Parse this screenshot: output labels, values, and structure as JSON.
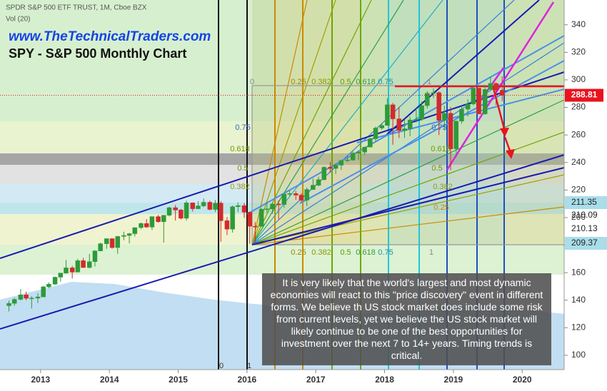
{
  "chart_data": {
    "type": "candlestick",
    "header": "SPDR S&P 500 ETF TRUST, 1M, Cboe BZX",
    "volume_label": "Vol (20)",
    "subtitle": "www.TheTechnicalTraders.com",
    "title": "SPY - S&P 500 Monthly Chart",
    "note": "It is very likely that the world's largest and most dynamic economies will react to this \"price discovery\" event in different forms.  We believe th US stock market does include some risk from current levels, yet we believe the US stock market will likely continue to be one of the best opportunities for investment over the next 7 to 14+ years.  Timing trends is critical.",
    "up_color": "#2e9a3a",
    "down_color": "#d42a2a",
    "xlim": [
      2012.41,
      2020.61
    ],
    "ylim": [
      89.6,
      358
    ],
    "xticks": [
      2013,
      2014,
      2015,
      2016,
      2017,
      2018,
      2019,
      2020
    ],
    "yticks": [
      100,
      120,
      140,
      160,
      180,
      200,
      220,
      240,
      260,
      280,
      300,
      320,
      340
    ],
    "last_price": 288.81,
    "last_price_color": "#e8141e",
    "fib_price_labels": [
      211.35,
      210.09,
      210.13,
      209.37
    ],
    "fib_labels": [
      "0",
      "0.25",
      "0.382",
      "0.5",
      "0.618",
      "0.75",
      "1",
      "0.25",
      "0.382",
      "0.5",
      "0.618",
      "0.75",
      "1",
      "0.75",
      "0.618",
      "0.5",
      "0.382",
      "0.75",
      "0.618",
      "0.5",
      "0.382",
      "0.25",
      "0",
      "1"
    ],
    "x": [
      2012.54,
      2012.62,
      2012.71,
      2012.79,
      2012.87,
      2012.96,
      2013.04,
      2013.12,
      2013.21,
      2013.29,
      2013.37,
      2013.46,
      2013.54,
      2013.62,
      2013.71,
      2013.79,
      2013.87,
      2013.96,
      2014.04,
      2014.12,
      2014.21,
      2014.29,
      2014.37,
      2014.46,
      2014.54,
      2014.62,
      2014.71,
      2014.79,
      2014.87,
      2014.96,
      2015.04,
      2015.12,
      2015.21,
      2015.29,
      2015.37,
      2015.46,
      2015.54,
      2015.62,
      2015.71,
      2015.79,
      2015.87,
      2015.96,
      2016.04,
      2016.12,
      2016.21,
      2016.29,
      2016.37,
      2016.46,
      2016.54,
      2016.62,
      2016.71,
      2016.79,
      2016.87,
      2016.96,
      2017.04,
      2017.12,
      2017.21,
      2017.29,
      2017.37,
      2017.46,
      2017.54,
      2017.62,
      2017.71,
      2017.79,
      2017.87,
      2017.96,
      2018.04,
      2018.12,
      2018.21,
      2018.29,
      2018.37,
      2018.46,
      2018.54,
      2018.62,
      2018.71,
      2018.79,
      2018.87,
      2018.96,
      2019.04,
      2019.12,
      2019.21,
      2019.29,
      2019.37,
      2019.46,
      2019.54,
      2019.62,
      2019.71
    ],
    "open": [
      136.0,
      137.7,
      140.6,
      143.9,
      141.4,
      141.5,
      142.4,
      149.7,
      151.6,
      156.7,
      159.7,
      163.5,
      160.4,
      168.7,
      163.7,
      168.0,
      175.8,
      181.0,
      184.7,
      178.2,
      186.3,
      187.0,
      188.3,
      192.7,
      195.7,
      193.1,
      200.7,
      197.0,
      201.7,
      207.2,
      205.5,
      199.5,
      210.7,
      206.4,
      208.5,
      211.1,
      205.9,
      210.5,
      197.7,
      191.6,
      207.9,
      208.7,
      203.9,
      193.7,
      193.6,
      206.0,
      206.3,
      209.8,
      209.5,
      217.1,
      217.4,
      216.3,
      212.6,
      220.4,
      223.5,
      227.5,
      236.5,
      235.7,
      238.1,
      241.4,
      241.8,
      246.8,
      247.5,
      251.2,
      257.2,
      265.0,
      266.9,
      281.9,
      271.7,
      263.2,
      264.5,
      270.9,
      271.3,
      281.3,
      290.3,
      290.7,
      270.6,
      275.7,
      249.9,
      270.0,
      278.7,
      282.5,
      294.0,
      275.3,
      293.0,
      297.4,
      292.5
    ],
    "high": [
      139.6,
      141.8,
      148.1,
      146.2,
      142.9,
      145.1,
      150.3,
      152.9,
      157.2,
      159.7,
      169.1,
      165.0,
      170.0,
      170.7,
      173.6,
      176.3,
      181.8,
      184.7,
      184.1,
      186.7,
      189.7,
      188.9,
      192.8,
      196.5,
      198.9,
      200.8,
      201.9,
      201.8,
      207.9,
      209.1,
      206.3,
      212.2,
      211.0,
      211.9,
      213.8,
      212.3,
      212.7,
      211.9,
      200.3,
      208.7,
      211.0,
      210.6,
      201.9,
      196.7,
      206.9,
      210.9,
      210.7,
      212.5,
      217.5,
      219.6,
      219.2,
      217.7,
      221.8,
      228.3,
      229.7,
      237.3,
      240.3,
      239.4,
      242.1,
      245.0,
      248.0,
      248.9,
      251.3,
      258.0,
      266.1,
      268.6,
      286.6,
      283.3,
      280.4,
      271.3,
      273.3,
      279.5,
      284.4,
      291.7,
      293.9,
      291.7,
      281.2,
      280.4,
      270.5,
      281.2,
      286.0,
      294.5,
      294.0,
      296.3,
      302.2,
      298.0,
      302.6
    ],
    "low": [
      131.9,
      136.0,
      139.8,
      140.0,
      134.0,
      138.0,
      144.7,
      148.7,
      151.2,
      153.5,
      159.3,
      155.7,
      160.6,
      163.6,
      163.2,
      164.5,
      175.5,
      177.3,
      177.4,
      173.7,
      183.5,
      181.3,
      186.3,
      191.6,
      192.6,
      191.0,
      196.3,
      181.9,
      200.8,
      197.9,
      198.6,
      197.9,
      204.4,
      206.1,
      207.5,
      205.2,
      204.1,
      182.4,
      187.3,
      189.1,
      204.1,
      199.8,
      181.0,
      181.1,
      193.5,
      203.5,
      202.8,
      198.7,
      207.1,
      215.7,
      212.8,
      211.3,
      208.4,
      220.2,
      222.7,
      227.1,
      232.5,
      231.6,
      234.6,
      240.5,
      241.2,
      241.8,
      245.4,
      252.2,
      255.0,
      263.6,
      267.4,
      252.9,
      257.8,
      257.8,
      259.1,
      269.0,
      270.3,
      279.2,
      286.8,
      259.9,
      263.4,
      234.3,
      243.7,
      268.2,
      273.4,
      281.6,
      275.0,
      274.6,
      293.0,
      281.7,
      284.6
    ],
    "close": [
      137.7,
      140.6,
      143.9,
      141.4,
      141.5,
      142.4,
      149.7,
      151.6,
      156.7,
      159.7,
      163.5,
      160.4,
      168.7,
      163.7,
      168.0,
      175.8,
      181.0,
      184.7,
      178.2,
      186.3,
      187.0,
      188.3,
      192.7,
      195.7,
      193.1,
      200.7,
      197.0,
      201.7,
      207.2,
      205.5,
      199.5,
      210.7,
      206.4,
      208.5,
      211.1,
      205.9,
      210.5,
      197.7,
      191.6,
      207.9,
      208.7,
      203.9,
      193.7,
      193.6,
      206.0,
      206.3,
      209.8,
      209.5,
      217.1,
      217.4,
      216.3,
      212.6,
      220.4,
      223.5,
      227.5,
      236.5,
      235.7,
      238.1,
      241.4,
      241.8,
      246.8,
      247.5,
      251.2,
      257.2,
      265.0,
      266.9,
      281.9,
      271.7,
      263.2,
      264.5,
      270.9,
      271.3,
      281.3,
      290.3,
      290.7,
      270.6,
      275.7,
      249.9,
      270.0,
      278.7,
      282.5,
      294.0,
      275.3,
      293.0,
      297.4,
      292.5,
      288.8
    ]
  }
}
